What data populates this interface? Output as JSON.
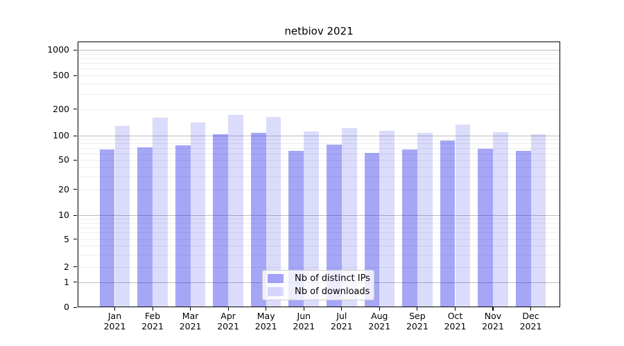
{
  "chart_data": {
    "type": "bar",
    "title": "netbiov 2021",
    "categories": [
      "Jan 2021",
      "Feb 2021",
      "Mar 2021",
      "Apr 2021",
      "May 2021",
      "Jun 2021",
      "Jul 2021",
      "Aug 2021",
      "Sep 2021",
      "Oct 2021",
      "Nov 2021",
      "Dec 2021"
    ],
    "x_tick_top": [
      "Jan",
      "Feb",
      "Mar",
      "Apr",
      "May",
      "Jun",
      "Jul",
      "Aug",
      "Sep",
      "Oct",
      "Nov",
      "Dec"
    ],
    "x_tick_bottom": "2021",
    "series": [
      {
        "name": "Nb of distinct IPs",
        "color": "rgba(13,13,232,0.37)",
        "color_on_white_hex": "#a4a4f4",
        "values": [
          68,
          71,
          76,
          103,
          107,
          65,
          78,
          61,
          67,
          87,
          69,
          65
        ]
      },
      {
        "name": "Nb of downloads",
        "color": "rgba(13,13,232,0.15)",
        "color_on_white_hex": "#dcdcfa",
        "values": [
          128,
          161,
          140,
          172,
          163,
          111,
          122,
          114,
          107,
          134,
          109,
          103
        ]
      }
    ],
    "xlabel": "",
    "ylabel": "",
    "y_axis": {
      "scale": "symlog",
      "range": [
        0,
        1250
      ],
      "tick_labels": [
        "0",
        "1",
        "2",
        "5",
        "10",
        "20",
        "50",
        "100",
        "200",
        "500",
        "1000"
      ],
      "major_grid_at": [
        1,
        10,
        100,
        1000
      ],
      "minor_grid_at": [
        2,
        3,
        4,
        5,
        6,
        7,
        8,
        9,
        20,
        30,
        40,
        50,
        60,
        70,
        80,
        90,
        200,
        300,
        400,
        500,
        600,
        700,
        800,
        900
      ],
      "grid": true
    },
    "legend": {
      "position": "lower center",
      "entries": [
        "Nb of distinct IPs",
        "Nb of downloads"
      ]
    }
  },
  "colors": {
    "background": "#ffffff",
    "axis": "#000000",
    "major_grid": "#bdbdbd",
    "minor_grid": "#ededed",
    "legend_border": "#cccccc"
  }
}
